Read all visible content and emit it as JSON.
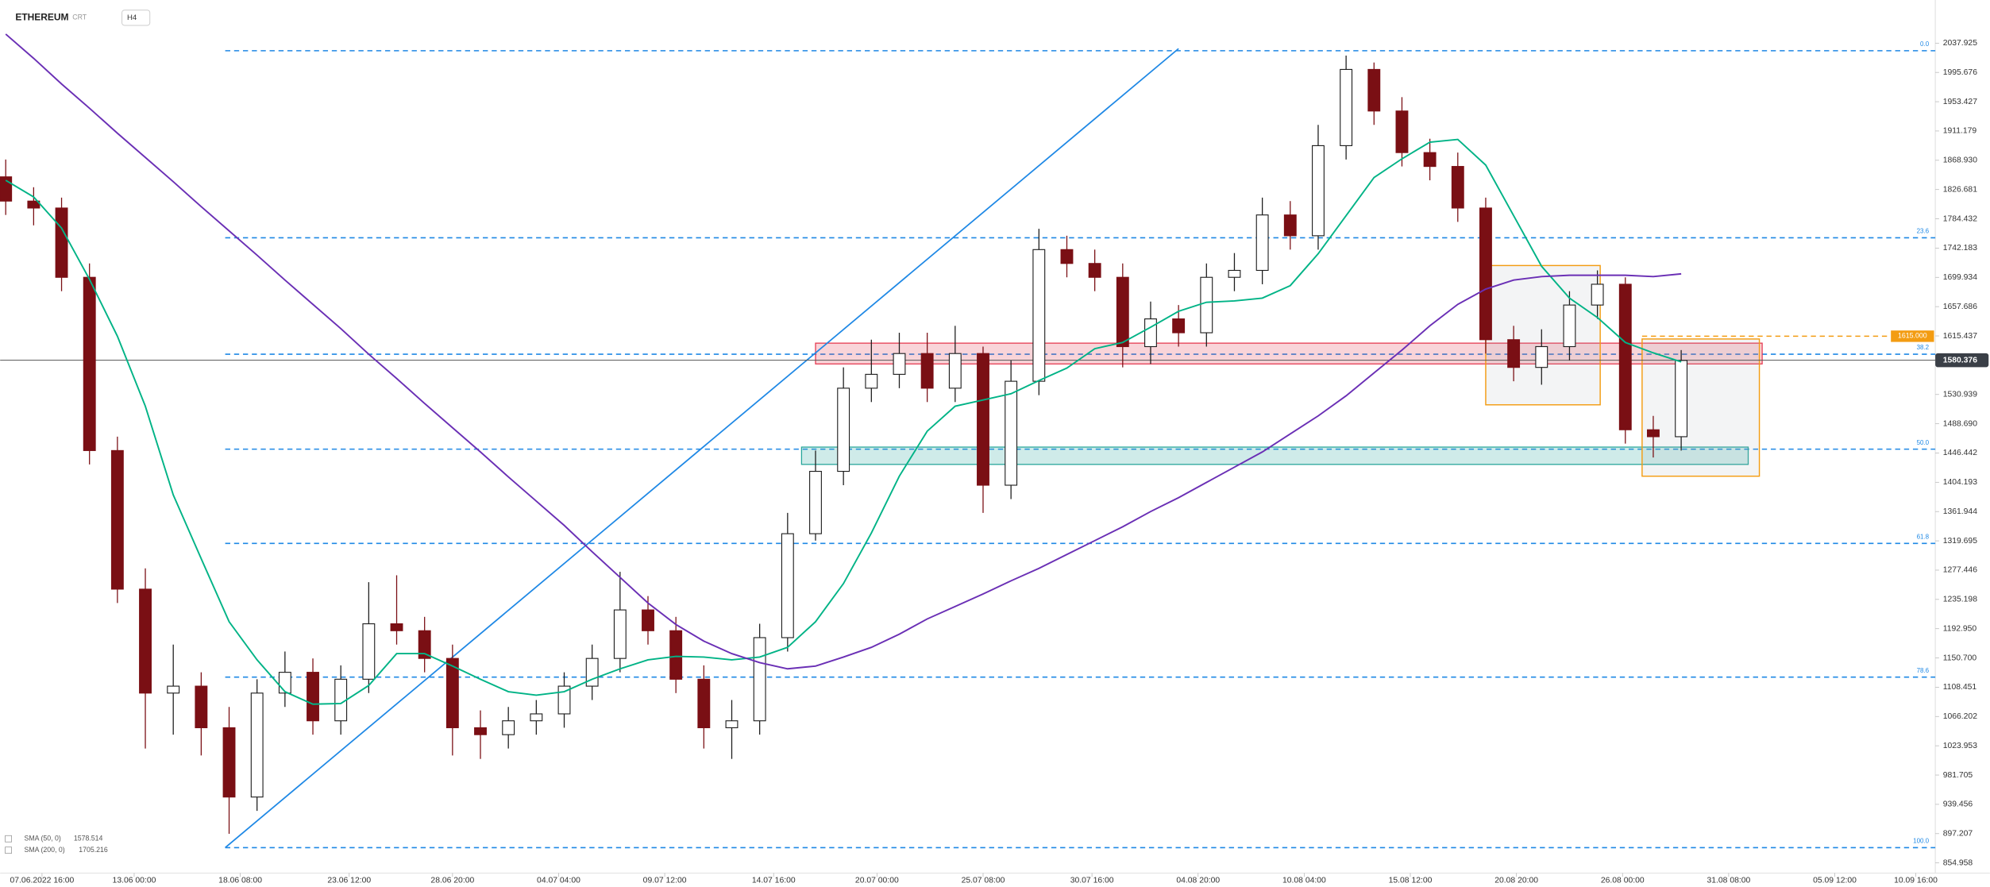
{
  "header": {
    "symbol": "ETHEREUM",
    "source": "CRT",
    "interval": "H4"
  },
  "chart_data": {
    "type": "candlestick",
    "xlim": [
      -0.2,
      69.1
    ],
    "ylim": [
      840.3,
      2100.2
    ],
    "yticks": [
      {
        "value": 2037.925,
        "label": "2037.925"
      },
      {
        "value": 1995.676,
        "label": "1995.676"
      },
      {
        "value": 1953.427,
        "label": "1953.427"
      },
      {
        "value": 1911.179,
        "label": "1911.179"
      },
      {
        "value": 1868.93,
        "label": "1868.930"
      },
      {
        "value": 1826.681,
        "label": "1826.681"
      },
      {
        "value": 1784.432,
        "label": "1784.432"
      },
      {
        "value": 1742.183,
        "label": "1742.183"
      },
      {
        "value": 1699.934,
        "label": "1699.934"
      },
      {
        "value": 1657.686,
        "label": "1657.686"
      },
      {
        "value": 1615.437,
        "label": "1615.437"
      },
      {
        "value": 1530.939,
        "label": "1530.939"
      },
      {
        "value": 1488.69,
        "label": "1488.690"
      },
      {
        "value": 1446.442,
        "label": "1446.442"
      },
      {
        "value": 1404.193,
        "label": "1404.193"
      },
      {
        "value": 1361.944,
        "label": "1361.944"
      },
      {
        "value": 1319.695,
        "label": "1319.695"
      },
      {
        "value": 1277.446,
        "label": "1277.446"
      },
      {
        "value": 1235.198,
        "label": "1235.198"
      },
      {
        "value": 1192.95,
        "label": "1192.950"
      },
      {
        "value": 1150.7,
        "label": "1150.700"
      },
      {
        "value": 1108.451,
        "label": "1108.451"
      },
      {
        "value": 1066.202,
        "label": "1066.202"
      },
      {
        "value": 1023.953,
        "label": "1023.953"
      },
      {
        "value": 981.705,
        "label": "981.705"
      },
      {
        "value": 939.456,
        "label": "939.456"
      },
      {
        "value": 897.207,
        "label": "897.207"
      },
      {
        "value": 854.958,
        "label": "854.958"
      }
    ],
    "xticks": [
      {
        "value": 1.3,
        "label": "07.06.2022 16:00"
      },
      {
        "value": 4.6,
        "label": "13.06 00:00"
      },
      {
        "value": 8.4,
        "label": "18.06 08:00"
      },
      {
        "value": 12.3,
        "label": "23.06 12:00"
      },
      {
        "value": 16.0,
        "label": "28.06 20:00"
      },
      {
        "value": 19.8,
        "label": "04.07 04:00"
      },
      {
        "value": 23.6,
        "label": "09.07 12:00"
      },
      {
        "value": 27.5,
        "label": "14.07 16:00"
      },
      {
        "value": 31.2,
        "label": "20.07 00:00"
      },
      {
        "value": 35.0,
        "label": "25.07 08:00"
      },
      {
        "value": 38.9,
        "label": "30.07 16:00"
      },
      {
        "value": 42.7,
        "label": "04.08 20:00"
      },
      {
        "value": 46.5,
        "label": "10.08 04:00"
      },
      {
        "value": 50.3,
        "label": "15.08 12:00"
      },
      {
        "value": 54.1,
        "label": "20.08 20:00"
      },
      {
        "value": 57.9,
        "label": "26.08 00:00"
      },
      {
        "value": 61.7,
        "label": "31.08 08:00"
      },
      {
        "value": 65.5,
        "label": "05.09 12:00"
      },
      {
        "value": 68.4,
        "label": "10.09 16:00"
      }
    ],
    "up_color": "#1e1e1e",
    "down_color": "#7a0f14",
    "ohlc": {
      "open": [
        1845,
        1810,
        1800,
        1700,
        1450,
        1250,
        1100,
        1110,
        1050,
        950,
        1100,
        1130,
        1060,
        1120,
        1200,
        1190,
        1150,
        1050,
        1040,
        1060,
        1070,
        1110,
        1150,
        1220,
        1190,
        1120,
        1050,
        1060,
        1180,
        1330,
        1420,
        1540,
        1560,
        1590,
        1540,
        1590,
        1400,
        1550,
        1740,
        1720,
        1700,
        1600,
        1640,
        1620,
        1700,
        1710,
        1790,
        1760,
        1890,
        2000,
        1940,
        1880,
        1860,
        1800,
        1610,
        1570,
        1600,
        1660,
        1690,
        1480,
        1470
      ],
      "high": [
        1870,
        1830,
        1815,
        1720,
        1470,
        1280,
        1170,
        1130,
        1080,
        1120,
        1160,
        1150,
        1140,
        1260,
        1270,
        1210,
        1170,
        1075,
        1080,
        1090,
        1130,
        1170,
        1275,
        1240,
        1210,
        1140,
        1090,
        1200,
        1360,
        1450,
        1570,
        1610,
        1620,
        1620,
        1630,
        1600,
        1580,
        1770,
        1760,
        1740,
        1720,
        1665,
        1660,
        1720,
        1735,
        1815,
        1810,
        1920,
        2020,
        2010,
        1960,
        1900,
        1880,
        1815,
        1630,
        1625,
        1680,
        1710,
        1700,
        1500,
        1595
      ],
      "low": [
        1790,
        1775,
        1680,
        1430,
        1230,
        1020,
        1040,
        1010,
        897,
        930,
        1080,
        1040,
        1040,
        1100,
        1170,
        1130,
        1010,
        1005,
        1020,
        1040,
        1050,
        1090,
        1130,
        1170,
        1100,
        1020,
        1005,
        1040,
        1160,
        1320,
        1400,
        1520,
        1540,
        1520,
        1520,
        1360,
        1380,
        1530,
        1700,
        1680,
        1570,
        1575,
        1600,
        1600,
        1680,
        1690,
        1740,
        1740,
        1870,
        1920,
        1860,
        1840,
        1780,
        1590,
        1550,
        1545,
        1580,
        1640,
        1460,
        1440,
        1450
      ],
      "close": [
        1810,
        1800,
        1700,
        1450,
        1250,
        1100,
        1110,
        1050,
        950,
        1100,
        1130,
        1060,
        1120,
        1200,
        1190,
        1150,
        1050,
        1040,
        1060,
        1070,
        1110,
        1150,
        1220,
        1190,
        1120,
        1050,
        1060,
        1180,
        1330,
        1420,
        1540,
        1560,
        1590,
        1540,
        1590,
        1400,
        1550,
        1740,
        1720,
        1700,
        1600,
        1640,
        1620,
        1700,
        1710,
        1790,
        1760,
        1890,
        2000,
        1940,
        1880,
        1860,
        1800,
        1610,
        1570,
        1600,
        1660,
        1690,
        1480,
        1470,
        1580
      ]
    },
    "series": [
      {
        "name": "SMA (50, 0)",
        "color": "#00b386",
        "last": 1578.514,
        "values": [
          1840,
          1816,
          1771,
          1697,
          1615,
          1514,
          1386,
          1294,
          1203,
          1148,
          1102,
          1084,
          1085,
          1111,
          1157,
          1157,
          1139,
          1120,
          1102,
          1097,
          1102,
          1120,
          1135,
          1148,
          1153,
          1152,
          1148,
          1152,
          1166,
          1203,
          1258,
          1331,
          1413,
          1478,
          1514,
          1523,
          1532,
          1551,
          1569,
          1597,
          1606,
          1628,
          1651,
          1664,
          1666,
          1670,
          1688,
          1734,
          1789,
          1844,
          1871,
          1895,
          1899,
          1862,
          1789,
          1716,
          1670,
          1642,
          1606,
          1591,
          1578
        ]
      },
      {
        "name": "SMA (200, 0)",
        "color": "#6a2fb5",
        "last": 1705.216,
        "values": [
          2051,
          2016,
          1979,
          1944,
          1908,
          1873,
          1838,
          1802,
          1767,
          1732,
          1696,
          1661,
          1626,
          1589,
          1554,
          1518,
          1483,
          1448,
          1412,
          1377,
          1342,
          1304,
          1267,
          1230,
          1199,
          1175,
          1157,
          1144,
          1135,
          1139,
          1152,
          1166,
          1185,
          1207,
          1225,
          1243,
          1262,
          1280,
          1300,
          1320,
          1340,
          1362,
          1382,
          1404,
          1426,
          1448,
          1474,
          1500,
          1529,
          1562,
          1595,
          1630,
          1661,
          1683,
          1696,
          1701,
          1703,
          1703,
          1703,
          1701,
          1705
        ]
      }
    ],
    "fib_color": "#1e88e5",
    "fib_levels": [
      {
        "label": "0.0",
        "value": 2027
      },
      {
        "label": "23.6",
        "value": 1757
      },
      {
        "label": "38.2",
        "value": 1589
      },
      {
        "label": "50.0",
        "value": 1452
      },
      {
        "label": "61.8",
        "value": 1316
      },
      {
        "label": "78.6",
        "value": 1123
      },
      {
        "label": "100.0",
        "value": 877
      }
    ],
    "fib_start": 7.86,
    "trendline": {
      "x": [
        7.86,
        42.0
      ],
      "y": [
        877,
        2030
      ],
      "color": "#1e88e5"
    },
    "zones": [
      {
        "x": [
          29.0,
          62.9
        ],
        "y": [
          1575,
          1605
        ],
        "color": "#e53950"
      },
      {
        "x": [
          28.5,
          62.4
        ],
        "y": [
          1430,
          1455
        ],
        "color": "#26a69a"
      }
    ],
    "boxes": [
      {
        "x": [
          53.0,
          57.1
        ],
        "y": [
          1516,
          1717
        ],
        "color": "#f39c12"
      },
      {
        "x": [
          58.6,
          62.8
        ],
        "y": [
          1413,
          1611
        ],
        "color": "#f39c12"
      }
    ],
    "target": {
      "value": 1615,
      "label": "1615.000",
      "x": [
        58.6,
        67.5
      ],
      "color": "#f39c12"
    },
    "last_price": {
      "value": 1580.376,
      "label": "1580.376"
    }
  }
}
